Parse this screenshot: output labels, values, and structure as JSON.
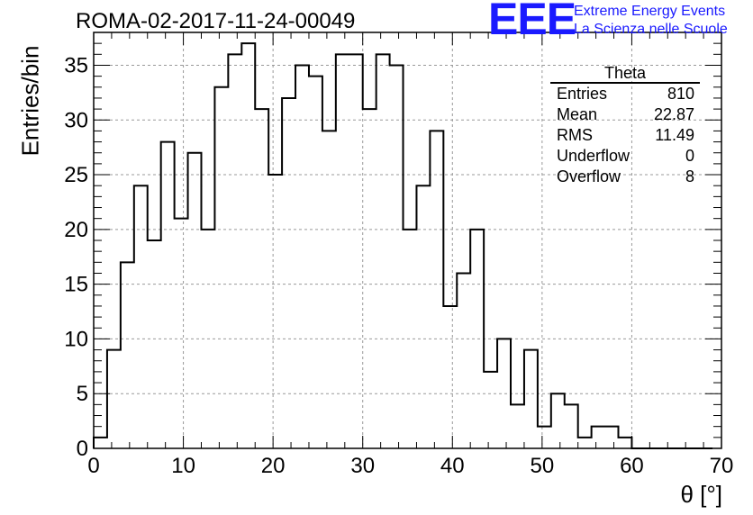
{
  "header": {
    "run_title": "ROMA-02-2017-11-24-00049",
    "logo_text": "EEE",
    "logo_line1": "Extreme Energy Events",
    "logo_line2": "La Scienza nelle Scuole",
    "logo_color": "#1a1aff"
  },
  "stats": {
    "title": "Theta",
    "rows": [
      {
        "label": "Entries",
        "value": "810"
      },
      {
        "label": "Mean",
        "value": "22.87"
      },
      {
        "label": "RMS",
        "value": "11.49"
      },
      {
        "label": "Underflow",
        "value": "0"
      },
      {
        "label": "Overflow",
        "value": "8"
      }
    ]
  },
  "chart_data": {
    "type": "bar",
    "title": "ROMA-02-2017-11-24-00049",
    "xlabel": "θ [°]",
    "ylabel": "Entries/bin",
    "xlim": [
      0,
      70
    ],
    "ylim": [
      0,
      38
    ],
    "bin_width": 1.5,
    "bin_start": 0,
    "values": [
      1,
      9,
      17,
      24,
      19,
      28,
      21,
      27,
      20,
      33,
      36,
      37,
      31,
      25,
      32,
      35,
      34,
      29,
      36,
      36,
      31,
      36,
      35,
      20,
      24,
      29,
      13,
      16,
      20,
      7,
      10,
      4,
      9,
      2,
      5,
      4,
      1,
      2,
      2,
      1,
      0,
      0,
      0,
      0,
      0,
      0
    ],
    "x_ticks": [
      0,
      10,
      20,
      30,
      40,
      50,
      60,
      70
    ],
    "y_ticks": [
      0,
      5,
      10,
      15,
      20,
      25,
      30,
      35
    ],
    "grid": true,
    "legend": "top-right",
    "style": "step outline"
  }
}
